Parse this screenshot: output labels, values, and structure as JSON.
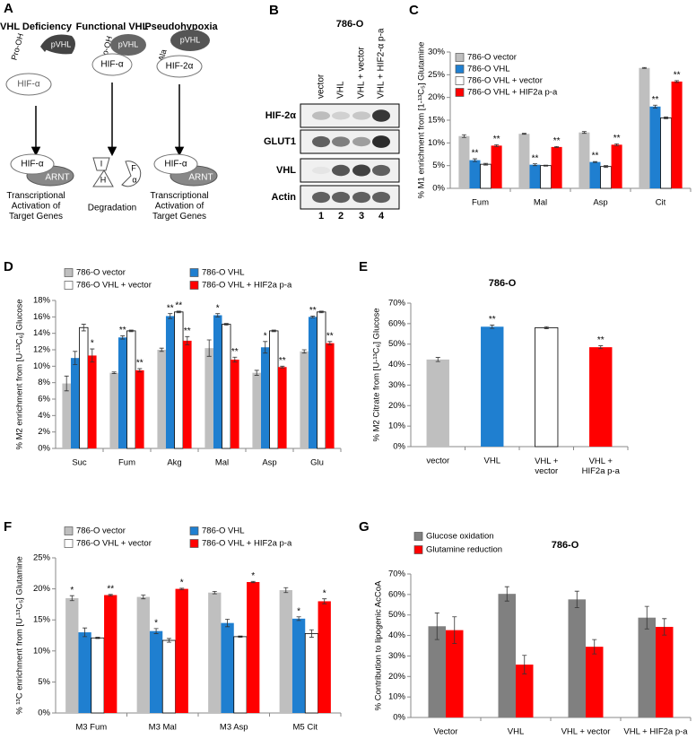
{
  "panel_a": {
    "label": "A",
    "columns": [
      {
        "title": "VHL Deficiency",
        "modification": "Pro-OH",
        "enzyme": "pVHL",
        "protein": "HIF-α",
        "complex": "HIF-α",
        "partner": "ARNT",
        "outcome": "Transcriptional\nActivation of\nTarget Genes"
      },
      {
        "title": "Functional VHL",
        "modification": "Pro-OH",
        "enzyme": "pVHL",
        "protein": "HIF-α",
        "fragments": [
          "I",
          "H",
          "F",
          "α"
        ],
        "outcome": "Degradation"
      },
      {
        "title": "Pseudohypoxia",
        "modification": "Ala",
        "enzyme": "pVHL",
        "protein": "HIF-2α",
        "complex": "HIF-α",
        "partner": "ARNT",
        "outcome": "Transcriptional\nActivation of\nTarget Genes"
      }
    ]
  },
  "panel_b": {
    "label": "B",
    "title": "786-O",
    "lanes": [
      "vector",
      "VHL",
      "VHL + vector",
      "VHL + HIF2-α p-a"
    ],
    "lane_numbers": [
      "1",
      "2",
      "3",
      "4"
    ],
    "rows": [
      "HIF-2α",
      "GLUT1",
      "VHL",
      "Actin"
    ]
  },
  "chart_data": [
    {
      "label": "C",
      "type": "bar",
      "y_label": "% M1 enrichment from [1-¹³C₅] Glutamine",
      "legend": "top-left",
      "categories": [
        "Fum",
        "Mal",
        "Asp",
        "Cit"
      ],
      "ylim": [
        0,
        30
      ],
      "yticks": [
        {
          "value": 0,
          "label": "0%"
        },
        {
          "value": 5,
          "label": "5%"
        },
        {
          "value": 10,
          "label": "10%"
        },
        {
          "value": 15,
          "label": "15%"
        },
        {
          "value": 20,
          "label": "20%"
        },
        {
          "value": 25,
          "label": "25%"
        },
        {
          "value": 30,
          "label": "30%"
        }
      ],
      "series": [
        {
          "name": "786-O vector",
          "color": "#bfbfbf",
          "values": [
            11.5,
            12,
            12.3,
            26.5
          ],
          "errors": [
            0.3,
            0.1,
            0.2,
            0.1
          ]
        },
        {
          "name": "786-O VHL",
          "color": "#1f7fd0",
          "values": [
            6.2,
            5.2,
            5.8,
            18
          ],
          "errors": [
            0.3,
            0.2,
            0.1,
            0.3
          ],
          "annotations": [
            "**",
            "**",
            "**",
            "**"
          ]
        },
        {
          "name": "786-O VHL + vector",
          "color": "#ffffff",
          "values": [
            5.3,
            5.0,
            4.8,
            15.5
          ],
          "errors": [
            0.2,
            0.1,
            0.2,
            0.2
          ]
        },
        {
          "name": "786-O VHL + HIF2a p-a",
          "color": "#ff0000",
          "values": [
            9.4,
            9.1,
            9.6,
            23.5
          ],
          "errors": [
            0.2,
            0.1,
            0.2,
            0.2
          ],
          "annotations": [
            "**",
            "**",
            "**",
            "**"
          ]
        }
      ]
    },
    {
      "label": "D",
      "type": "bar",
      "y_label": "% M2 enrichment from [U-¹³C₆] Glucose",
      "legend": "top",
      "categories": [
        "Suc",
        "Fum",
        "Akg",
        "Mal",
        "Asp",
        "Glu"
      ],
      "ylim": [
        0,
        18
      ],
      "yticks": [
        {
          "value": 0,
          "label": "0%"
        },
        {
          "value": 2,
          "label": "2%"
        },
        {
          "value": 4,
          "label": "4%"
        },
        {
          "value": 6,
          "label": "6%"
        },
        {
          "value": 8,
          "label": "8%"
        },
        {
          "value": 10,
          "label": "10%"
        },
        {
          "value": 12,
          "label": "12%"
        },
        {
          "value": 14,
          "label": "14%"
        },
        {
          "value": 16,
          "label": "16%"
        },
        {
          "value": 18,
          "label": "18%"
        }
      ],
      "series": [
        {
          "name": "786-O vector",
          "color": "#bfbfbf",
          "values": [
            7.9,
            9.2,
            12.0,
            12.2,
            9.2,
            11.8
          ],
          "errors": [
            0.9,
            0.1,
            0.2,
            1.0,
            0.3,
            0.2
          ]
        },
        {
          "name": "786-O VHL",
          "color": "#1f7fd0",
          "values": [
            11.0,
            13.5,
            16.1,
            16.2,
            12.3,
            16.0
          ],
          "errors": [
            0.8,
            0.2,
            0.3,
            0.2,
            0.7,
            0.1
          ],
          "annotations": [
            null,
            "**",
            "**",
            "*",
            "*",
            "**"
          ]
        },
        {
          "name": "786-O VHL + vector",
          "color": "#ffffff",
          "values": [
            14.7,
            14.3,
            16.6,
            15.1,
            14.3,
            16.6
          ],
          "errors": [
            0.4,
            0.1,
            0.1,
            0.1,
            0.1,
            0.1
          ],
          "annotations": [
            null,
            null,
            "**",
            null,
            null,
            null
          ]
        },
        {
          "name": "786-O VHL + HIF2a p-a",
          "color": "#ff0000",
          "values": [
            11.3,
            9.5,
            13.1,
            10.8,
            9.9,
            12.8
          ],
          "errors": [
            0.8,
            0.2,
            0.5,
            0.3,
            0.1,
            0.2
          ],
          "annotations": [
            "*",
            "**",
            "**",
            "**",
            "**",
            "**"
          ]
        }
      ]
    },
    {
      "label": "E",
      "type": "bar",
      "title": "786-O",
      "y_label": "% M2 Citrate from [U-¹³C₆] Glucose",
      "categories": [
        "vector",
        "VHL",
        "VHL +\nvector",
        "VHL +\nHIF2a p-a"
      ],
      "ylim": [
        0,
        70
      ],
      "yticks": [
        {
          "value": 0,
          "label": "0%"
        },
        {
          "value": 10,
          "label": "10%"
        },
        {
          "value": 20,
          "label": "20%"
        },
        {
          "value": 30,
          "label": "30%"
        },
        {
          "value": 40,
          "label": "40%"
        },
        {
          "value": 50,
          "label": "50%"
        },
        {
          "value": 60,
          "label": "60%"
        },
        {
          "value": 70,
          "label": "70%"
        }
      ],
      "values": [
        42.5,
        58.5,
        58,
        48.5
      ],
      "errors": [
        1,
        0.8,
        0.5,
        0.7
      ],
      "colors": [
        "#bfbfbf",
        "#1f7fd0",
        "#ffffff",
        "#ff0000"
      ],
      "annotations": [
        null,
        "**",
        null,
        "**"
      ]
    },
    {
      "label": "F",
      "type": "bar",
      "y_label": "% ¹³C enrichment from [U-¹³C₅] Glutamine",
      "legend": "top",
      "categories": [
        "M3 Fum",
        "M3 Mal",
        "M3 Asp",
        "M5 Cit"
      ],
      "ylim": [
        0,
        25
      ],
      "yticks": [
        {
          "value": 0,
          "label": "0%"
        },
        {
          "value": 5,
          "label": "5%"
        },
        {
          "value": 10,
          "label": "10%"
        },
        {
          "value": 15,
          "label": "15%"
        },
        {
          "value": 20,
          "label": "20%"
        },
        {
          "value": 25,
          "label": "25%"
        }
      ],
      "series": [
        {
          "name": "786-O vector",
          "color": "#bfbfbf",
          "values": [
            18.5,
            18.7,
            19.4,
            19.8
          ],
          "errors": [
            0.4,
            0.3,
            0.2,
            0.4
          ],
          "annotations": [
            "*",
            null,
            null,
            null
          ]
        },
        {
          "name": "786-O VHL",
          "color": "#1f7fd0",
          "values": [
            13.0,
            13.2,
            14.5,
            15.2
          ],
          "errors": [
            0.7,
            0.4,
            0.6,
            0.3
          ],
          "annotations": [
            null,
            "*",
            null,
            "*"
          ]
        },
        {
          "name": "786-O VHL + vector",
          "color": "#ffffff",
          "values": [
            12.1,
            11.7,
            12.3,
            12.8
          ],
          "errors": [
            0.1,
            0.3,
            0.1,
            0.6
          ]
        },
        {
          "name": "786-O VHL + HIF2a p-a",
          "color": "#ff0000",
          "values": [
            19.0,
            20.0,
            21.1,
            18.0
          ],
          "errors": [
            0.1,
            0.1,
            0.1,
            0.4
          ],
          "annotations": [
            "**",
            "*",
            "*",
            "*"
          ]
        }
      ]
    },
    {
      "label": "G",
      "type": "bar",
      "title": "786-O",
      "y_label": "% Contribution to lipogenic AcCoA",
      "legend": "top-left",
      "categories": [
        "Vector",
        "VHL",
        "VHL + vector",
        "VHL + HIF2a p-a"
      ],
      "ylim": [
        0,
        70
      ],
      "yticks": [
        {
          "value": 0,
          "label": "0%"
        },
        {
          "value": 10,
          "label": "10%"
        },
        {
          "value": 20,
          "label": "20%"
        },
        {
          "value": 30,
          "label": "30%"
        },
        {
          "value": 40,
          "label": "40%"
        },
        {
          "value": 50,
          "label": "50%"
        },
        {
          "value": 60,
          "label": "60%"
        },
        {
          "value": 70,
          "label": "70%"
        }
      ],
      "series": [
        {
          "name": "Glucose oxidation",
          "color": "#808080",
          "values": [
            44.5,
            60.3,
            57.6,
            48.7
          ],
          "errors": [
            6.5,
            3.5,
            4,
            5.5
          ]
        },
        {
          "name": "Glutamine reduction",
          "color": "#ff0000",
          "values": [
            42.6,
            25.8,
            34.5,
            44.2
          ],
          "errors": [
            6.5,
            4.5,
            3.5,
            4
          ]
        }
      ]
    }
  ]
}
